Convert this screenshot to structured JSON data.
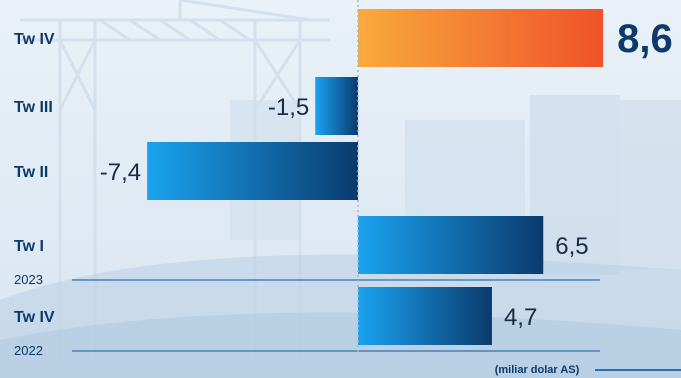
{
  "chart_data": {
    "type": "bar",
    "orientation": "horizontal",
    "categories": [
      "Tw IV",
      "Tw III",
      "Tw II",
      "Tw I",
      "Tw IV"
    ],
    "year_labels": [
      "",
      "",
      "",
      "2023",
      "2022"
    ],
    "values": [
      8.6,
      -1.5,
      -7.4,
      6.5,
      4.7
    ],
    "value_labels": [
      "8,6",
      "-1,5",
      "-7,4",
      "6,5",
      "4,7"
    ],
    "highlight_index": 0,
    "unit_note": "(miliar dolar AS)",
    "xlim": [
      -10,
      10
    ],
    "grid": false,
    "title": "",
    "xlabel": "",
    "ylabel": ""
  },
  "colors": {
    "bar_light": "#1aa3f0",
    "bar_dark": "#0a3a6e",
    "highlight_light": "#f8aa3c",
    "highlight_dark": "#f0522a",
    "label_text": "#0c3a6a",
    "value_text": "#1a2b44",
    "highlight_value_text": "#0c3a6a",
    "axis_line": "#2a6fae"
  }
}
